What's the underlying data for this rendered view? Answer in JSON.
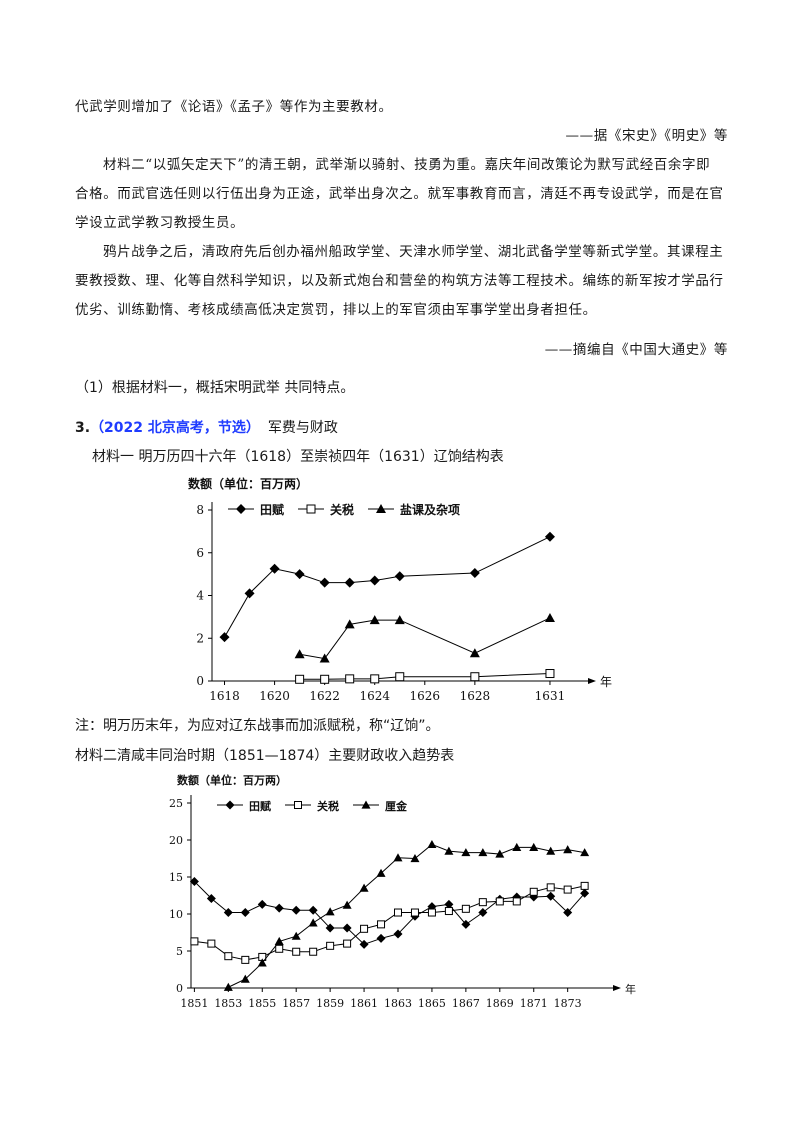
{
  "text": {
    "line1": "代武学则增加了《论语》《孟子》等作为主要教材。",
    "source1": "——据《宋史》《明史》等",
    "para2_l1": "材料二“以弧矢定天下”的清王朝，武举渐以骑射、技勇为重。嘉庆年间改策论为默写武经百余字即",
    "para2_l2": "合格。而武官选任则以行伍出身为正途，武举出身次之。就军事教育而言，清廷不再专设武学，而是在官",
    "para2_l3": "学设立武学教习教授生员。",
    "para3_l1": "鸦片战争之后，清政府先后创办福州船政学堂、天津水师学堂、湖北武备学堂等新式学堂。其课程主",
    "para3_l2": "要教授数、理、化等自然科学知识，以及新式炮台和营垒的构筑方法等工程技术。编练的新军按才学品行",
    "para3_l3": "优劣、训练勤惰、考核成绩高低决定赏罚，排以上的军官须由军事学堂出身者担任。",
    "source2": "——摘编自《中国大通史》等",
    "question1": "（1）根据材料一，概括宋明武举   共同特点。",
    "q3_num": "3.",
    "q3_src": "（2022 北京高考，节选）",
    "q3_title": "军费与财政",
    "mat1_caption": "材料一    明万历四十六年（1618）至崇祯四年（1631）辽饷结构表",
    "note": "注：明万历末年，为应对辽东战事而加派赋税，称“辽饷”。",
    "mat2_caption": "材料二清咸丰同治时期（1851—1874）主要财政收入趋势表"
  },
  "chart_data": [
    {
      "type": "line",
      "ylabel": "数额（单位：百万两）",
      "xunit": "年",
      "ylim": [
        0,
        8
      ],
      "yticks": [
        0,
        2,
        4,
        6,
        8
      ],
      "xlim": [
        1617.5,
        1632.2
      ],
      "xticks": [
        "1618",
        "1620",
        "1622",
        "1624",
        "1626",
        "1628",
        "1631"
      ],
      "series": [
        {
          "name": "田赋",
          "marker": "diamond",
          "x": [
            1618,
            1619,
            1620,
            1621,
            1622,
            1623,
            1624,
            1625,
            1628,
            1631
          ],
          "y": [
            2.05,
            4.1,
            5.25,
            5.0,
            4.6,
            4.6,
            4.7,
            4.9,
            5.05,
            6.75
          ]
        },
        {
          "name": "关税",
          "marker": "square",
          "x": [
            1621,
            1622,
            1623,
            1624,
            1625,
            1628,
            1631
          ],
          "y": [
            0.08,
            0.08,
            0.1,
            0.1,
            0.2,
            0.2,
            0.35
          ]
        },
        {
          "name": "盐课及杂项",
          "marker": "triangle",
          "x": [
            1621,
            1622,
            1623,
            1624,
            1625,
            1628,
            1631
          ],
          "y": [
            1.25,
            1.05,
            2.65,
            2.85,
            2.85,
            1.3,
            2.95
          ]
        }
      ]
    },
    {
      "type": "line",
      "ylabel": "数额（单位：百万两）",
      "xunit": "年",
      "ylim": [
        0,
        25
      ],
      "yticks": [
        0,
        5,
        10,
        15,
        20,
        25
      ],
      "xlim": [
        1850.8,
        1875.2
      ],
      "xticks": [
        "1851",
        "1853",
        "1855",
        "1857",
        "1859",
        "1861",
        "1863",
        "1865",
        "1867",
        "1869",
        "1871",
        "1873"
      ],
      "series": [
        {
          "name": "田赋",
          "marker": "diamond",
          "x": [
            1851,
            1852,
            1853,
            1854,
            1855,
            1856,
            1857,
            1858,
            1859,
            1860,
            1861,
            1862,
            1863,
            1864,
            1865,
            1866,
            1867,
            1868,
            1869,
            1870,
            1871,
            1872,
            1873,
            1874
          ],
          "y": [
            14.4,
            12.1,
            10.2,
            10.2,
            11.3,
            10.8,
            10.5,
            10.5,
            8.1,
            8.1,
            5.9,
            6.7,
            7.3,
            9.7,
            11.0,
            11.3,
            8.6,
            10.2,
            12.0,
            12.3,
            12.3,
            12.4,
            10.2,
            12.8
          ]
        },
        {
          "name": "关税",
          "marker": "square",
          "x": [
            1851,
            1852,
            1853,
            1854,
            1855,
            1856,
            1857,
            1858,
            1859,
            1860,
            1861,
            1862,
            1863,
            1864,
            1865,
            1866,
            1867,
            1868,
            1869,
            1870,
            1871,
            1872,
            1873,
            1874
          ],
          "y": [
            6.3,
            6.0,
            4.3,
            3.8,
            4.2,
            5.3,
            4.9,
            4.9,
            5.7,
            6.0,
            8.0,
            8.6,
            10.2,
            10.2,
            10.2,
            10.4,
            10.7,
            11.6,
            11.7,
            11.7,
            13.0,
            13.6,
            13.3,
            13.8
          ]
        },
        {
          "name": "厘金",
          "marker": "triangle",
          "x": [
            1853,
            1854,
            1855,
            1856,
            1857,
            1858,
            1859,
            1860,
            1861,
            1862,
            1863,
            1864,
            1865,
            1866,
            1867,
            1868,
            1869,
            1870,
            1871,
            1872,
            1873,
            1874
          ],
          "y": [
            0.1,
            1.2,
            3.4,
            6.3,
            7.0,
            8.8,
            10.3,
            11.2,
            13.5,
            15.5,
            17.6,
            17.5,
            19.4,
            18.5,
            18.3,
            18.3,
            18.1,
            19.0,
            19.0,
            18.5,
            18.7,
            18.3
          ]
        }
      ]
    }
  ]
}
